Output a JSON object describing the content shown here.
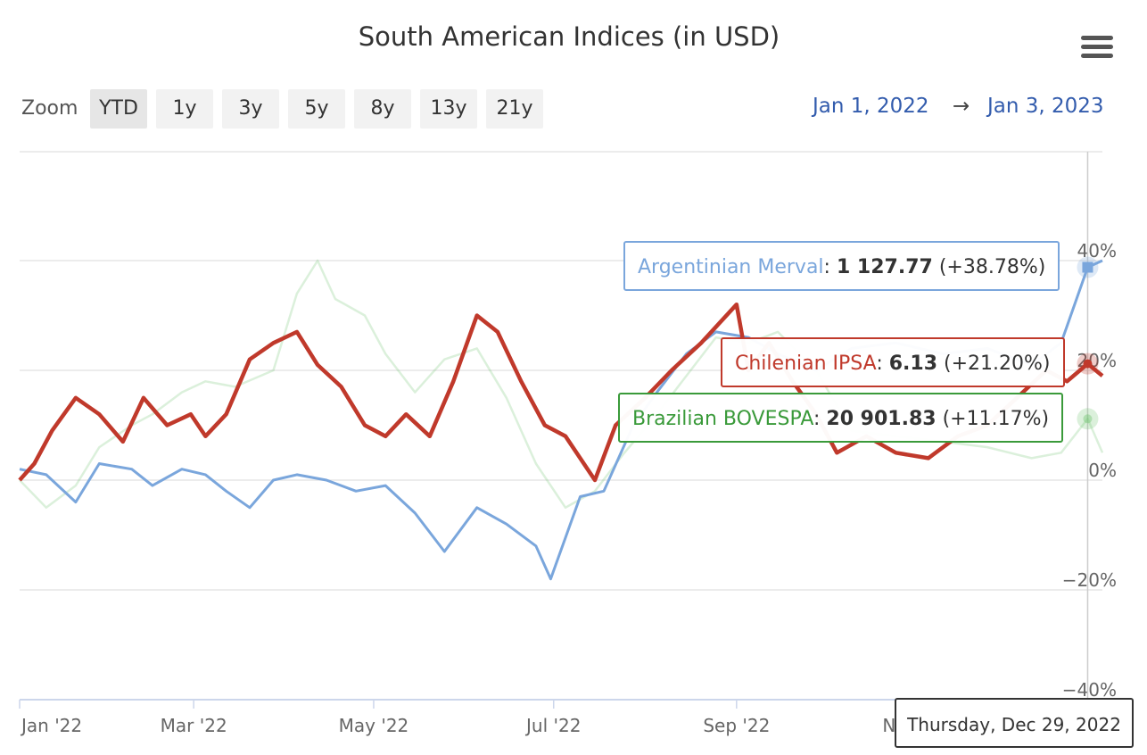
{
  "title": "South American Indices (in USD)",
  "zoom": {
    "label": "Zoom",
    "buttons": [
      "YTD",
      "1y",
      "3y",
      "5y",
      "8y",
      "13y",
      "21y"
    ],
    "active": "YTD"
  },
  "range": {
    "from": "Jan 1, 2022",
    "arrow": "→",
    "to": "Jan 3, 2023"
  },
  "chart_data": {
    "type": "line",
    "x_unit": "date",
    "x_range": [
      "2022-01-01",
      "2023-01-03"
    ],
    "x_ticks": [
      "Jan '22",
      "Mar '22",
      "May '22",
      "Jul '22",
      "Sep '22",
      "Nov '22"
    ],
    "y_ticks": [
      "40%",
      "20%",
      "0%",
      "−20%",
      "−40%"
    ],
    "y_tick_values": [
      40,
      20,
      0,
      -20,
      -40
    ],
    "ylim": [
      -40,
      60
    ],
    "grid": true,
    "series": [
      {
        "name": "Brazilian BOVESPA",
        "color": "#6ec26e",
        "points": [
          [
            "2022-01-01",
            0
          ],
          [
            "2022-01-10",
            -5
          ],
          [
            "2022-01-20",
            -1
          ],
          [
            "2022-01-28",
            6
          ],
          [
            "2022-02-08",
            10
          ],
          [
            "2022-02-15",
            12
          ],
          [
            "2022-02-25",
            16
          ],
          [
            "2022-03-05",
            18
          ],
          [
            "2022-03-15",
            17
          ],
          [
            "2022-03-28",
            20
          ],
          [
            "2022-04-05",
            34
          ],
          [
            "2022-04-12",
            40
          ],
          [
            "2022-04-18",
            33
          ],
          [
            "2022-04-28",
            30
          ],
          [
            "2022-05-05",
            23
          ],
          [
            "2022-05-15",
            16
          ],
          [
            "2022-05-25",
            22
          ],
          [
            "2022-06-05",
            24
          ],
          [
            "2022-06-15",
            15
          ],
          [
            "2022-06-25",
            3
          ],
          [
            "2022-07-05",
            -5
          ],
          [
            "2022-07-15",
            -2
          ],
          [
            "2022-07-25",
            5
          ],
          [
            "2022-08-05",
            12
          ],
          [
            "2022-08-15",
            19
          ],
          [
            "2022-08-25",
            26
          ],
          [
            "2022-09-05",
            25
          ],
          [
            "2022-09-15",
            27
          ],
          [
            "2022-09-28",
            20
          ],
          [
            "2022-10-10",
            9
          ],
          [
            "2022-10-25",
            8
          ],
          [
            "2022-11-10",
            7
          ],
          [
            "2022-11-25",
            6
          ],
          [
            "2022-12-10",
            4
          ],
          [
            "2022-12-20",
            5
          ],
          [
            "2022-12-29",
            11.17
          ],
          [
            "2023-01-03",
            5
          ]
        ]
      },
      {
        "name": "Argentinian Merval",
        "color": "#7aa6dc",
        "points": [
          [
            "2022-01-01",
            2
          ],
          [
            "2022-01-10",
            1
          ],
          [
            "2022-01-20",
            -4
          ],
          [
            "2022-01-28",
            3
          ],
          [
            "2022-02-08",
            2
          ],
          [
            "2022-02-15",
            -1
          ],
          [
            "2022-02-25",
            2
          ],
          [
            "2022-03-05",
            1
          ],
          [
            "2022-03-12",
            -2
          ],
          [
            "2022-03-20",
            -5
          ],
          [
            "2022-03-28",
            0
          ],
          [
            "2022-04-05",
            1
          ],
          [
            "2022-04-15",
            0
          ],
          [
            "2022-04-25",
            -2
          ],
          [
            "2022-05-05",
            -1
          ],
          [
            "2022-05-15",
            -6
          ],
          [
            "2022-05-25",
            -13
          ],
          [
            "2022-06-05",
            -5
          ],
          [
            "2022-06-15",
            -8
          ],
          [
            "2022-06-25",
            -12
          ],
          [
            "2022-06-30",
            -18
          ],
          [
            "2022-07-10",
            -3
          ],
          [
            "2022-07-18",
            -2
          ],
          [
            "2022-07-28",
            10
          ],
          [
            "2022-08-05",
            16
          ],
          [
            "2022-08-15",
            23
          ],
          [
            "2022-08-25",
            27
          ],
          [
            "2022-09-05",
            26
          ],
          [
            "2022-09-15",
            23
          ],
          [
            "2022-09-28",
            20
          ],
          [
            "2022-10-10",
            24
          ],
          [
            "2022-10-25",
            25
          ],
          [
            "2022-11-10",
            23
          ],
          [
            "2022-11-25",
            24
          ],
          [
            "2022-12-10",
            21
          ],
          [
            "2022-12-20",
            25
          ],
          [
            "2022-12-29",
            38.78
          ],
          [
            "2023-01-03",
            40
          ]
        ]
      },
      {
        "name": "Chilenian IPSA",
        "color": "#c0392b",
        "points": [
          [
            "2022-01-01",
            0
          ],
          [
            "2022-01-06",
            3
          ],
          [
            "2022-01-12",
            9
          ],
          [
            "2022-01-20",
            15
          ],
          [
            "2022-01-28",
            12
          ],
          [
            "2022-02-05",
            7
          ],
          [
            "2022-02-12",
            15
          ],
          [
            "2022-02-20",
            10
          ],
          [
            "2022-02-28",
            12
          ],
          [
            "2022-03-05",
            8
          ],
          [
            "2022-03-12",
            12
          ],
          [
            "2022-03-20",
            22
          ],
          [
            "2022-03-28",
            25
          ],
          [
            "2022-04-05",
            27
          ],
          [
            "2022-04-12",
            21
          ],
          [
            "2022-04-20",
            17
          ],
          [
            "2022-04-28",
            10
          ],
          [
            "2022-05-05",
            8
          ],
          [
            "2022-05-12",
            12
          ],
          [
            "2022-05-20",
            8
          ],
          [
            "2022-05-28",
            18
          ],
          [
            "2022-06-05",
            30
          ],
          [
            "2022-06-12",
            27
          ],
          [
            "2022-06-20",
            18
          ],
          [
            "2022-06-28",
            10
          ],
          [
            "2022-07-05",
            8
          ],
          [
            "2022-07-15",
            0
          ],
          [
            "2022-07-22",
            10
          ],
          [
            "2022-08-01",
            15
          ],
          [
            "2022-08-10",
            20
          ],
          [
            "2022-08-20",
            25
          ],
          [
            "2022-09-01",
            32
          ],
          [
            "2022-09-05",
            20
          ],
          [
            "2022-09-12",
            25
          ],
          [
            "2022-09-20",
            18
          ],
          [
            "2022-09-28",
            12
          ],
          [
            "2022-10-05",
            5
          ],
          [
            "2022-10-15",
            8
          ],
          [
            "2022-10-25",
            5
          ],
          [
            "2022-11-05",
            4
          ],
          [
            "2022-11-15",
            8
          ],
          [
            "2022-11-25",
            10
          ],
          [
            "2022-12-05",
            15
          ],
          [
            "2022-12-15",
            20
          ],
          [
            "2022-12-22",
            18
          ],
          [
            "2022-12-29",
            21.2
          ],
          [
            "2023-01-03",
            19
          ]
        ]
      }
    ],
    "tooltip": {
      "date": "Thursday, Dec 29, 2022",
      "items": [
        {
          "series": "Argentinian Merval",
          "value": "1 127.77",
          "change": "(+38.78%)"
        },
        {
          "series": "Chilenian IPSA",
          "value": "6.13",
          "change": "(+21.20%)"
        },
        {
          "series": "Brazilian BOVESPA",
          "value": "20 901.83",
          "change": "(+11.17%)"
        }
      ]
    }
  }
}
